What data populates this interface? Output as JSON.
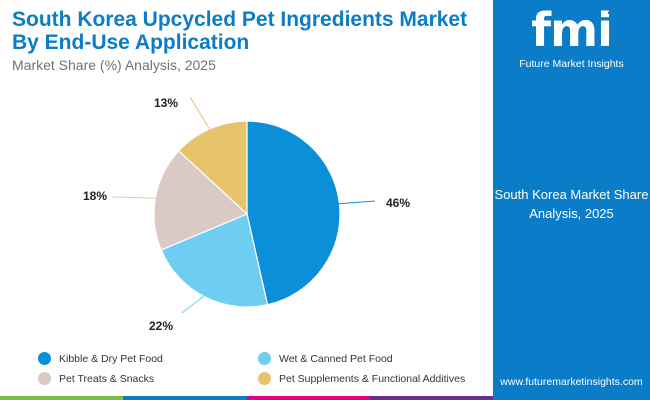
{
  "header": {
    "title": "South Korea Upcycled Pet Ingredients Market By End-Use Application",
    "subtitle": "Market Share (%) Analysis, 2025"
  },
  "chart_data": {
    "type": "pie",
    "title": "South Korea Upcycled Pet Ingredients Market By End-Use Application",
    "subtitle": "Market Share (%) Analysis, 2025",
    "categories": [
      "Kibble & Dry Pet Food",
      "Wet & Canned Pet Food",
      "Pet Treats & Snacks",
      "Pet Supplements & Functional Additives"
    ],
    "values": [
      46,
      22,
      18,
      13
    ],
    "labels": [
      "46%",
      "22%",
      "18%",
      "13%"
    ],
    "colors": [
      "#0b8fd8",
      "#6dcdf3",
      "#dac9c4",
      "#e8c36e"
    ],
    "legend_position": "bottom"
  },
  "legend": {
    "items": [
      {
        "label": "Kibble & Dry Pet Food",
        "color": "#0b8fd8"
      },
      {
        "label": "Wet & Canned Pet Food",
        "color": "#6dcdf3"
      },
      {
        "label": "Pet Treats & Snacks",
        "color": "#dac9c4"
      },
      {
        "label": "Pet Supplements & Functional Additives",
        "color": "#e8c36e"
      }
    ]
  },
  "side_panel": {
    "logo_text": "fmi",
    "logo_subtitle": "Future Market Insights",
    "panel_text": "South Korea Market Share Analysis, 2025",
    "url": "www.futuremarketinsights.com"
  },
  "colors": {
    "brand_blue": "#0b7cc8",
    "bar_segments": [
      "#7ac143",
      "#0b7cc8",
      "#e4007c",
      "#6a2c91"
    ]
  }
}
